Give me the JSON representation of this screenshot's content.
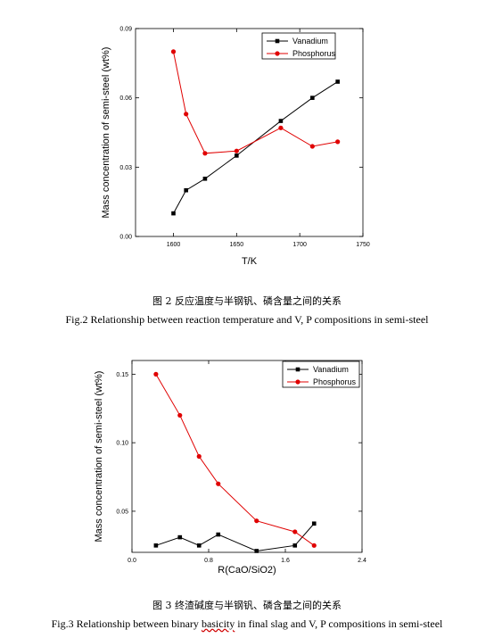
{
  "chart_data": [
    {
      "type": "line",
      "title": "",
      "xlabel": "T/K",
      "ylabel": "Mass concentration of semi-steel (wt%)",
      "xlim": [
        1570,
        1750
      ],
      "ylim": [
        0,
        0.09
      ],
      "x_ticks": [
        "1600",
        "1650",
        "1700",
        "1750"
      ],
      "y_ticks": [
        "0.00",
        "0.03",
        "0.06",
        "0.09"
      ],
      "legend_position": "top-right",
      "series": [
        {
          "name": "Vanadium",
          "color": "#000000",
          "marker": "square",
          "x": [
            1600,
            1610,
            1625,
            1650,
            1685,
            1710,
            1730
          ],
          "values": [
            0.01,
            0.02,
            0.025,
            0.035,
            0.05,
            0.06,
            0.067
          ]
        },
        {
          "name": "Phosphorus",
          "color": "#e00000",
          "marker": "circle",
          "x": [
            1600,
            1610,
            1625,
            1650,
            1685,
            1710,
            1730
          ],
          "values": [
            0.08,
            0.053,
            0.036,
            0.037,
            0.047,
            0.039,
            0.041
          ]
        }
      ]
    },
    {
      "type": "line",
      "title": "",
      "xlabel": "R(CaO/SiO2)",
      "ylabel": "Mass concentration of semi-steel (wt%)",
      "xlim": [
        0.0,
        2.4
      ],
      "ylim": [
        0.02,
        0.16
      ],
      "x_ticks": [
        "0.0",
        "0.8",
        "1.6",
        "2.4"
      ],
      "y_ticks": [
        "0.05",
        "0.10",
        "0.15"
      ],
      "legend_position": "top-right",
      "series": [
        {
          "name": "Vanadium",
          "color": "#000000",
          "marker": "square",
          "x": [
            0.25,
            0.5,
            0.7,
            0.9,
            1.3,
            1.7,
            1.9
          ],
          "values": [
            0.025,
            0.031,
            0.025,
            0.033,
            0.021,
            0.025,
            0.041
          ]
        },
        {
          "name": "Phosphorus",
          "color": "#e00000",
          "marker": "circle",
          "x": [
            0.25,
            0.5,
            0.7,
            0.9,
            1.3,
            1.7,
            1.9
          ],
          "values": [
            0.15,
            0.12,
            0.09,
            0.07,
            0.043,
            0.035,
            0.025
          ]
        }
      ]
    }
  ],
  "captions": {
    "fig2_cn": "图 2 反应温度与半钢钒、磷含量之间的关系",
    "fig2_en": "Fig.2 Relationship between reaction temperature and V, P compositions in semi-steel",
    "fig3_cn": "图 3 终渣碱度与半钢钒、磷含量之间的关系",
    "fig3_en_a": "Fig.3 Relationship between binary ",
    "fig3_en_b": "basicity",
    "fig3_en_c": " in final slag and V, P compositions in semi-steel"
  }
}
